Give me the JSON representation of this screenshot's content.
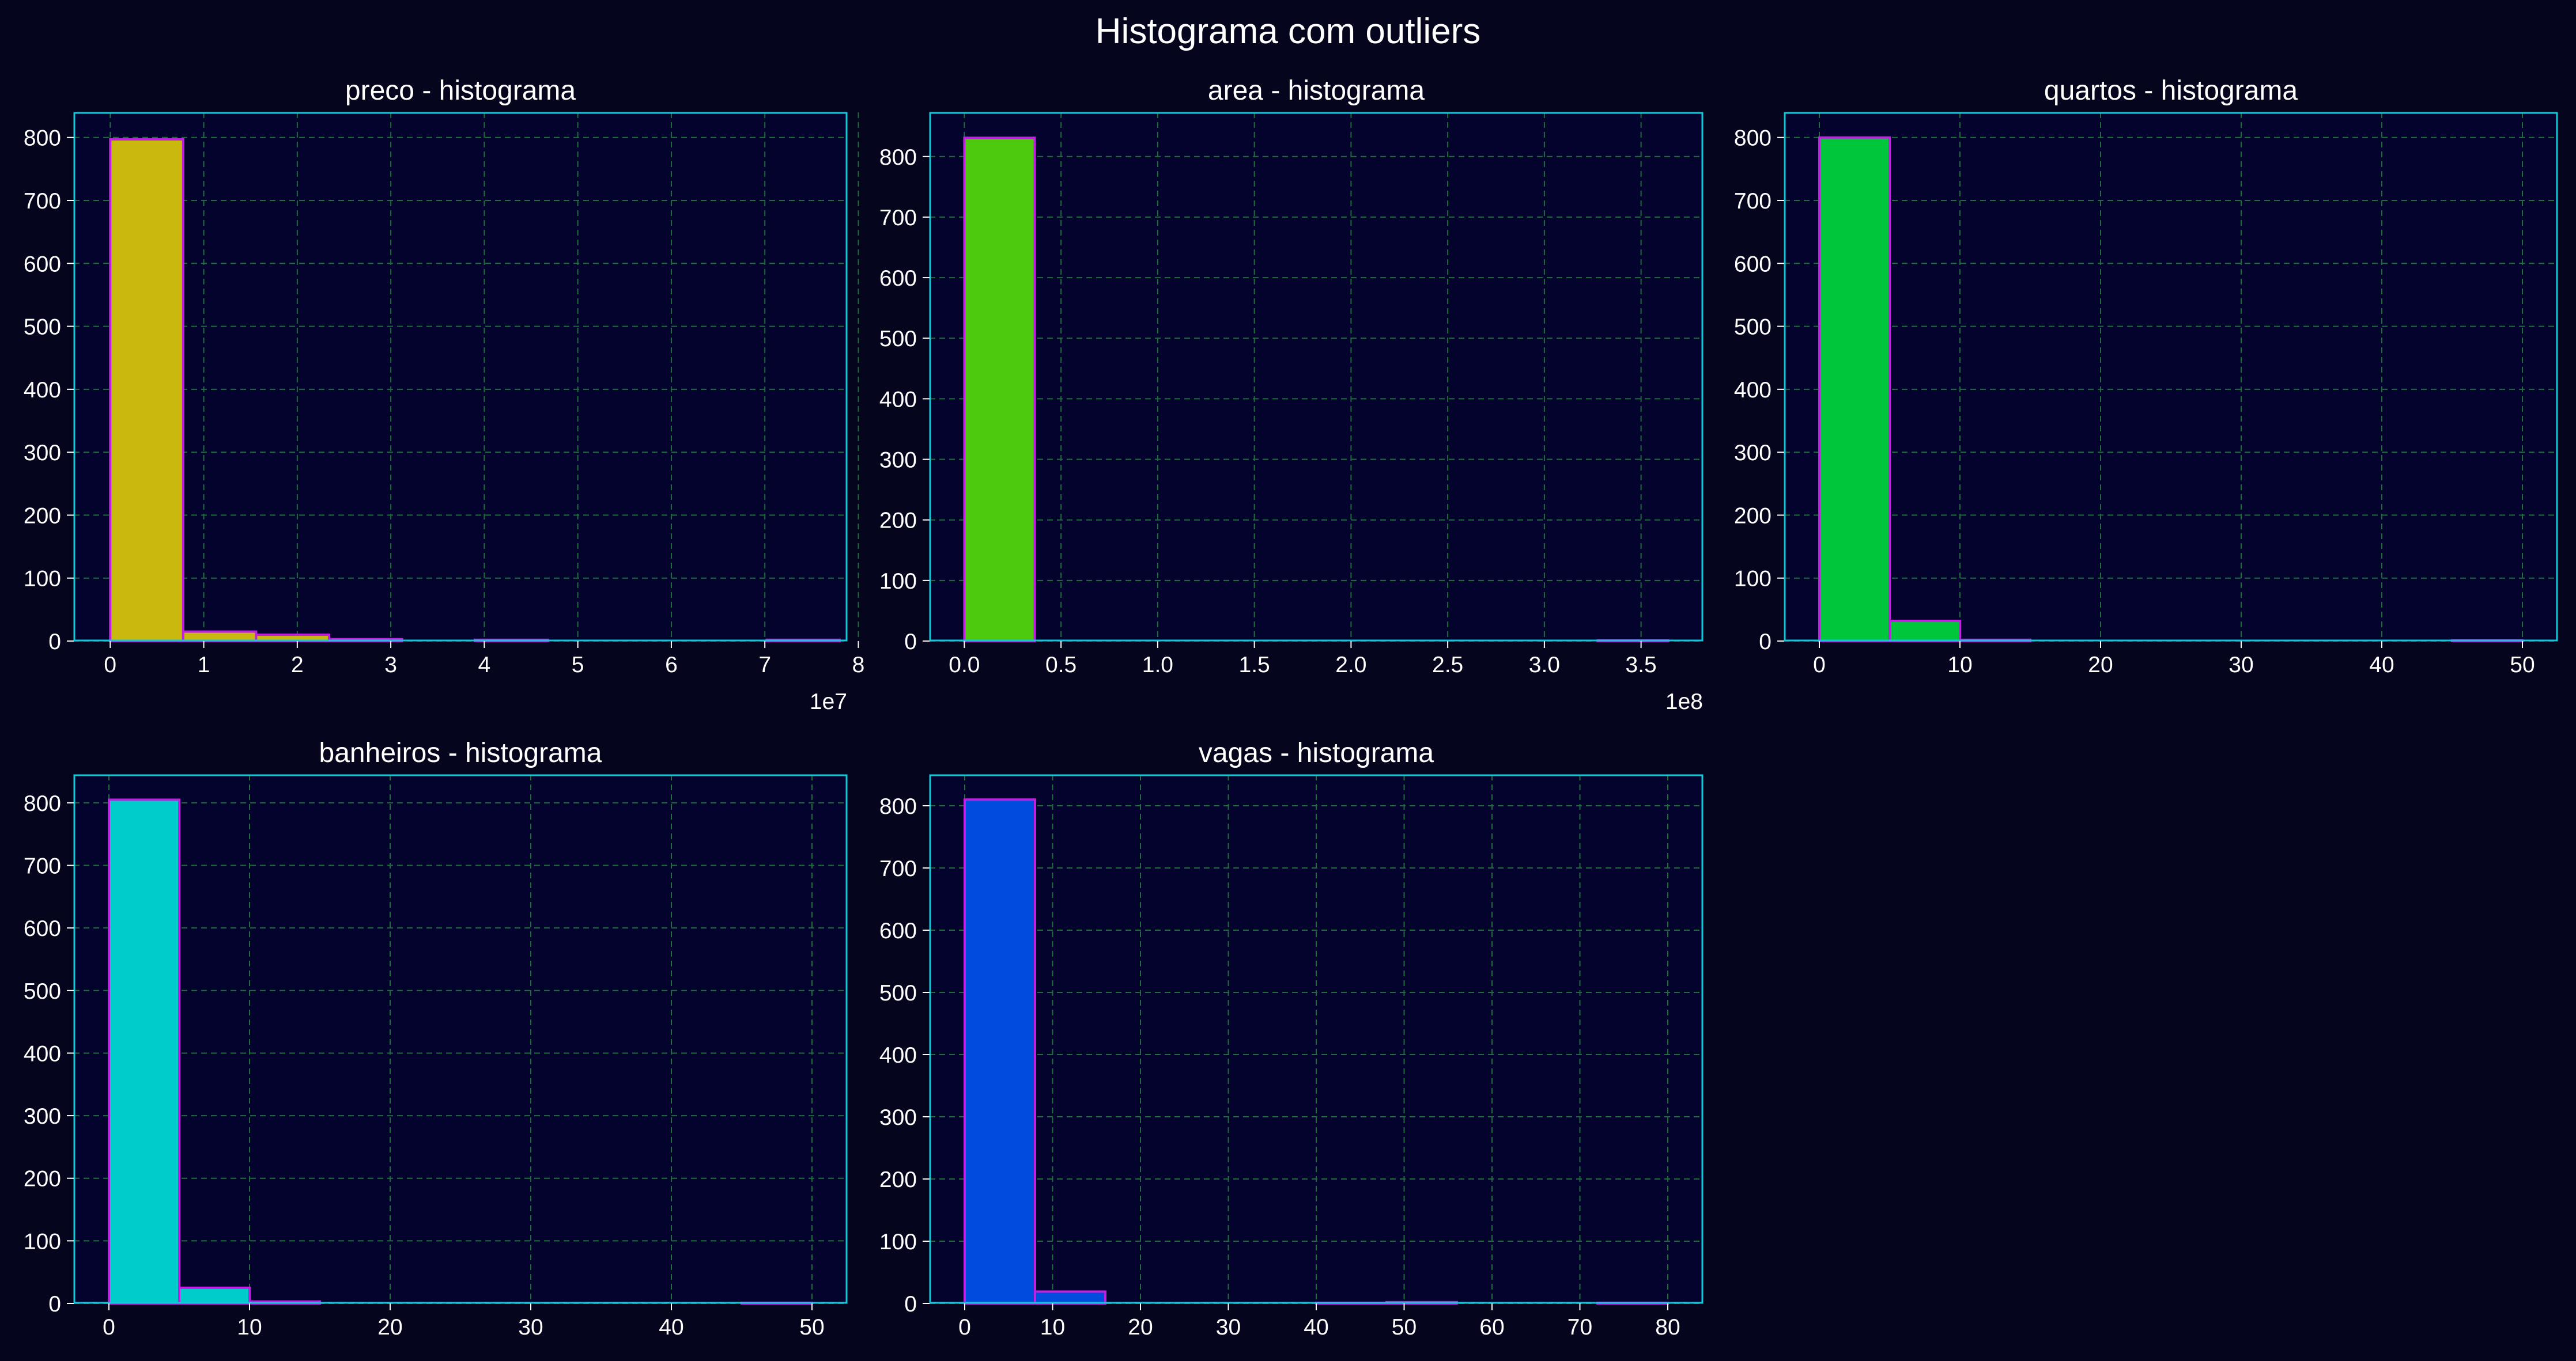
{
  "figure": {
    "title": "Histograma com outliers",
    "background": "#05051e",
    "axes_background": "#03032e",
    "spine_color": "#12c8d8",
    "grid_color": "#1e6e3c",
    "bar_edge_color": "#c020e0"
  },
  "chart_data": [
    {
      "type": "bar",
      "title": "preco - histograma",
      "color": "#c9b90e",
      "xlim": [
        -0.39,
        7.88
      ],
      "ylim": [
        0,
        840
      ],
      "x_ticks": [
        0,
        1,
        2,
        3,
        4,
        5,
        6,
        7,
        8
      ],
      "x_tick_labels": [
        "0",
        "1",
        "2",
        "3",
        "4",
        "5",
        "6",
        "7",
        "8"
      ],
      "x_offset_text": "1e7",
      "y_ticks": [
        0,
        100,
        200,
        300,
        400,
        500,
        600,
        700,
        800
      ],
      "y_tick_labels": [
        "0",
        "100",
        "200",
        "300",
        "400",
        "500",
        "600",
        "700",
        "800"
      ],
      "bin_edges": [
        0.0,
        0.78,
        1.56,
        2.34,
        3.12,
        3.9,
        4.68,
        5.46,
        6.24,
        7.02,
        7.8
      ],
      "counts": [
        797,
        15,
        10,
        3,
        0,
        2,
        0,
        0,
        0,
        2
      ],
      "grid": true
    },
    {
      "type": "bar",
      "title": "area - histograma",
      "color": "#4dc90e",
      "xlim": [
        -0.18,
        3.82
      ],
      "ylim": [
        0,
        873
      ],
      "x_ticks": [
        0,
        0.5,
        1.0,
        1.5,
        2.0,
        2.5,
        3.0,
        3.5
      ],
      "x_tick_labels": [
        "0.0",
        "0.5",
        "1.0",
        "1.5",
        "2.0",
        "2.5",
        "3.0",
        "3.5"
      ],
      "x_offset_text": "1e8",
      "y_ticks": [
        0,
        100,
        200,
        300,
        400,
        500,
        600,
        700,
        800
      ],
      "y_tick_labels": [
        "0",
        "100",
        "200",
        "300",
        "400",
        "500",
        "600",
        "700",
        "800"
      ],
      "bin_edges": [
        0.0,
        0.364,
        0.728,
        1.092,
        1.456,
        1.82,
        2.184,
        2.548,
        2.912,
        3.276,
        3.64
      ],
      "counts": [
        831,
        0,
        0,
        0,
        0,
        0,
        0,
        0,
        0,
        1
      ],
      "grid": true
    },
    {
      "type": "bar",
      "title": "quartos - histograma",
      "color": "#00c63c",
      "xlim": [
        -2.5,
        52.5
      ],
      "ylim": [
        0,
        840
      ],
      "x_ticks": [
        0,
        10,
        20,
        30,
        40,
        50
      ],
      "x_tick_labels": [
        "0",
        "10",
        "20",
        "30",
        "40",
        "50"
      ],
      "y_ticks": [
        0,
        100,
        200,
        300,
        400,
        500,
        600,
        700,
        800
      ],
      "y_tick_labels": [
        "0",
        "100",
        "200",
        "300",
        "400",
        "500",
        "600",
        "700",
        "800"
      ],
      "bin_edges": [
        0,
        5,
        10,
        15,
        20,
        25,
        30,
        35,
        40,
        45,
        50
      ],
      "counts": [
        800,
        32,
        2,
        0,
        0,
        0,
        0,
        0,
        0,
        1
      ],
      "grid": true
    },
    {
      "type": "bar",
      "title": "banheiros - histograma",
      "color": "#00cccc",
      "xlim": [
        -2.5,
        52.5
      ],
      "ylim": [
        0,
        845
      ],
      "x_ticks": [
        0,
        10,
        20,
        30,
        40,
        50
      ],
      "x_tick_labels": [
        "0",
        "10",
        "20",
        "30",
        "40",
        "50"
      ],
      "y_ticks": [
        0,
        100,
        200,
        300,
        400,
        500,
        600,
        700,
        800
      ],
      "y_tick_labels": [
        "0",
        "100",
        "200",
        "300",
        "400",
        "500",
        "600",
        "700",
        "800"
      ],
      "bin_edges": [
        0,
        5,
        10,
        15,
        20,
        25,
        30,
        35,
        40,
        45,
        50
      ],
      "counts": [
        805,
        25,
        3,
        0,
        0,
        0,
        0,
        0,
        0,
        1
      ],
      "grid": true
    },
    {
      "type": "bar",
      "title": "vagas - histograma",
      "color": "#004cdc",
      "xlim": [
        -4,
        84
      ],
      "ylim": [
        0,
        850
      ],
      "x_ticks": [
        0,
        10,
        20,
        30,
        40,
        50,
        60,
        70,
        80
      ],
      "x_tick_labels": [
        "0",
        "10",
        "20",
        "30",
        "40",
        "50",
        "60",
        "70",
        "80"
      ],
      "y_ticks": [
        0,
        100,
        200,
        300,
        400,
        500,
        600,
        700,
        800
      ],
      "y_tick_labels": [
        "0",
        "100",
        "200",
        "300",
        "400",
        "500",
        "600",
        "700",
        "800"
      ],
      "bin_edges": [
        0,
        8,
        16,
        24,
        32,
        40,
        48,
        56,
        64,
        72,
        80
      ],
      "counts": [
        810,
        19,
        0,
        0,
        0,
        1,
        2,
        0,
        0,
        1
      ],
      "grid": true
    }
  ]
}
